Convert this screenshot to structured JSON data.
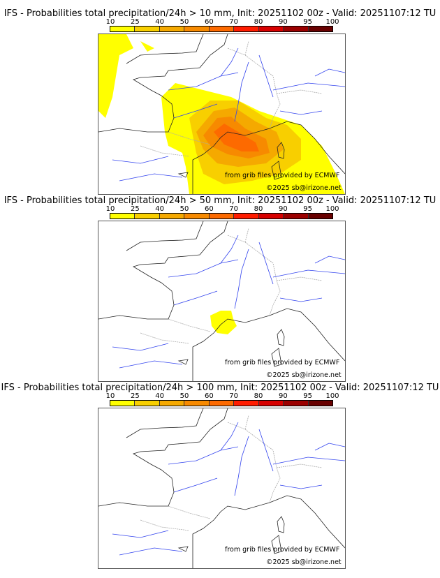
{
  "colorbar": {
    "ticks": [
      "10",
      "25",
      "40",
      "50",
      "60",
      "70",
      "80",
      "90",
      "95",
      "100"
    ],
    "colors": [
      "#ffff00",
      "#f8cf00",
      "#f5a900",
      "#f78a00",
      "#fd6a00",
      "#ff1c00",
      "#d70000",
      "#9b0000",
      "#680000"
    ]
  },
  "panels": [
    {
      "title": "IFS - Probabilities total precipitation/24h > 10 mm, Init: 20251102 00z - Valid: 20251107:12 TU"
    },
    {
      "title": "IFS - Probabilities total precipitation/24h > 50 mm, Init: 20251102 00z - Valid: 20251107:12 TU"
    },
    {
      "title": "IFS - Probabilities total precipitation/24h > 100 mm, Init: 20251102 00z - Valid: 20251107:12 TU"
    }
  ],
  "credits": {
    "source": "from grib files provided by ECMWF",
    "copyright": "©2025 sb@irizone.net"
  }
}
